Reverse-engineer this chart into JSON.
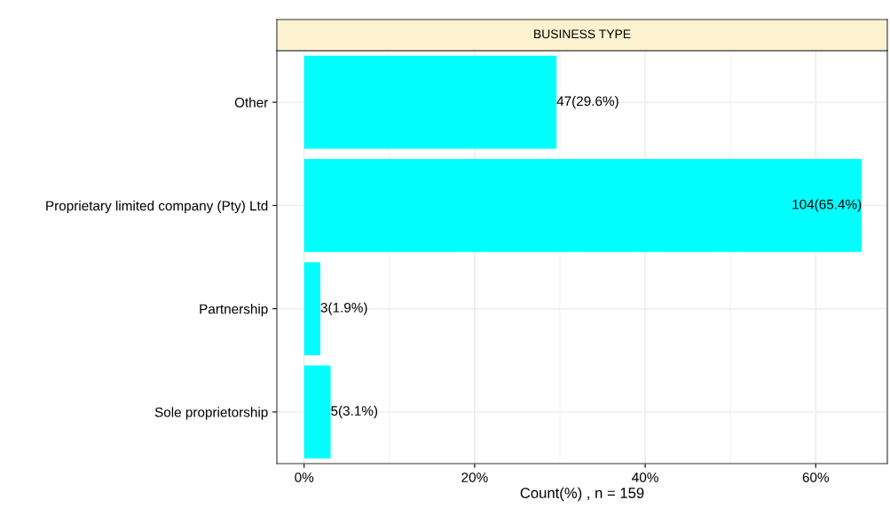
{
  "chart_data": {
    "type": "bar",
    "orientation": "horizontal",
    "title": "BUSINESS TYPE",
    "xlabel": "Count(%) , n = 159",
    "categories": [
      "Other",
      "Proprietary limited company (Pty) Ltd",
      "Partnership",
      "Sole proprietorship"
    ],
    "values": [
      29.6,
      65.4,
      1.9,
      3.1
    ],
    "value_labels": [
      "47(29.6%)",
      "104(65.4%)",
      "3(1.9%)",
      "5(3.1%)"
    ],
    "color": "#00ffff",
    "xlim": [
      -3.2,
      68.4
    ],
    "xticks": [
      {
        "value": 0,
        "label": "0%"
      },
      {
        "value": 20,
        "label": "20%"
      },
      {
        "value": 40,
        "label": "40%"
      },
      {
        "value": 60,
        "label": "60%"
      }
    ],
    "grid": true,
    "legend": false
  }
}
